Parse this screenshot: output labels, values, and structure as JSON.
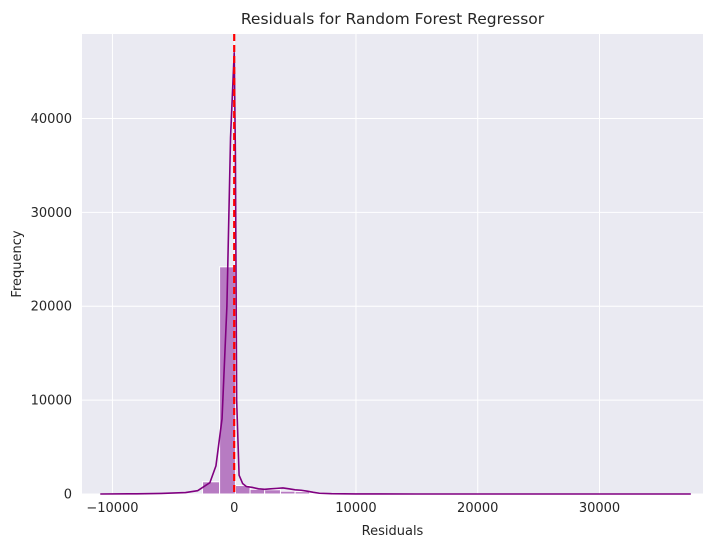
{
  "chart_data": {
    "type": "histogram",
    "title": "Residuals for Random Forest Regressor",
    "xlabel": "Residuals",
    "ylabel": "Frequency",
    "xlim": [
      -12500,
      38500
    ],
    "ylim": [
      0,
      49000
    ],
    "x_ticks": [
      -10000,
      0,
      10000,
      20000,
      30000
    ],
    "x_tick_labels": [
      "−10000",
      "0",
      "10000",
      "20000",
      "30000"
    ],
    "y_ticks": [
      0,
      10000,
      20000,
      30000,
      40000
    ],
    "y_tick_labels": [
      "0",
      "10000",
      "20000",
      "30000",
      "40000"
    ],
    "grid": true,
    "colors": {
      "background": "#eaeaf2",
      "grid": "#ffffff",
      "bar_fill": "#b77bc2",
      "bar_edge": "#ffffff",
      "kde_line": "#800080",
      "zero_line": "#ff0000"
    },
    "bins": [
      {
        "x0": -2600,
        "x1": -1200,
        "count": 1300
      },
      {
        "x0": -1200,
        "x1": 100,
        "count": 24200
      },
      {
        "x0": 100,
        "x1": 1300,
        "count": 900
      },
      {
        "x0": 1300,
        "x1": 2500,
        "count": 500
      },
      {
        "x0": 2500,
        "x1": 3800,
        "count": 450
      },
      {
        "x0": 3800,
        "x1": 5000,
        "count": 300
      },
      {
        "x0": 5000,
        "x1": 6200,
        "count": 250
      },
      {
        "x0": 6200,
        "x1": 7500,
        "count": 80
      },
      {
        "x0": 7500,
        "x1": 10000,
        "count": 40
      }
    ],
    "kde_points": [
      [
        -11000,
        0
      ],
      [
        -8000,
        20
      ],
      [
        -6000,
        60
      ],
      [
        -4000,
        150
      ],
      [
        -3000,
        350
      ],
      [
        -2000,
        1200
      ],
      [
        -1500,
        3000
      ],
      [
        -1000,
        8000
      ],
      [
        -600,
        20000
      ],
      [
        -300,
        38000
      ],
      [
        -100,
        44000
      ],
      [
        0,
        47000
      ],
      [
        100,
        36000
      ],
      [
        200,
        10000
      ],
      [
        400,
        2000
      ],
      [
        700,
        1100
      ],
      [
        1000,
        800
      ],
      [
        1500,
        700
      ],
      [
        2000,
        550
      ],
      [
        2500,
        500
      ],
      [
        3000,
        550
      ],
      [
        3500,
        600
      ],
      [
        4000,
        650
      ],
      [
        4500,
        550
      ],
      [
        5000,
        450
      ],
      [
        5500,
        400
      ],
      [
        6000,
        300
      ],
      [
        6500,
        180
      ],
      [
        7000,
        80
      ],
      [
        8000,
        30
      ],
      [
        10000,
        10
      ],
      [
        15000,
        0
      ],
      [
        37500,
        0
      ]
    ],
    "reference_line": {
      "x": 0,
      "style": "dashed"
    }
  }
}
